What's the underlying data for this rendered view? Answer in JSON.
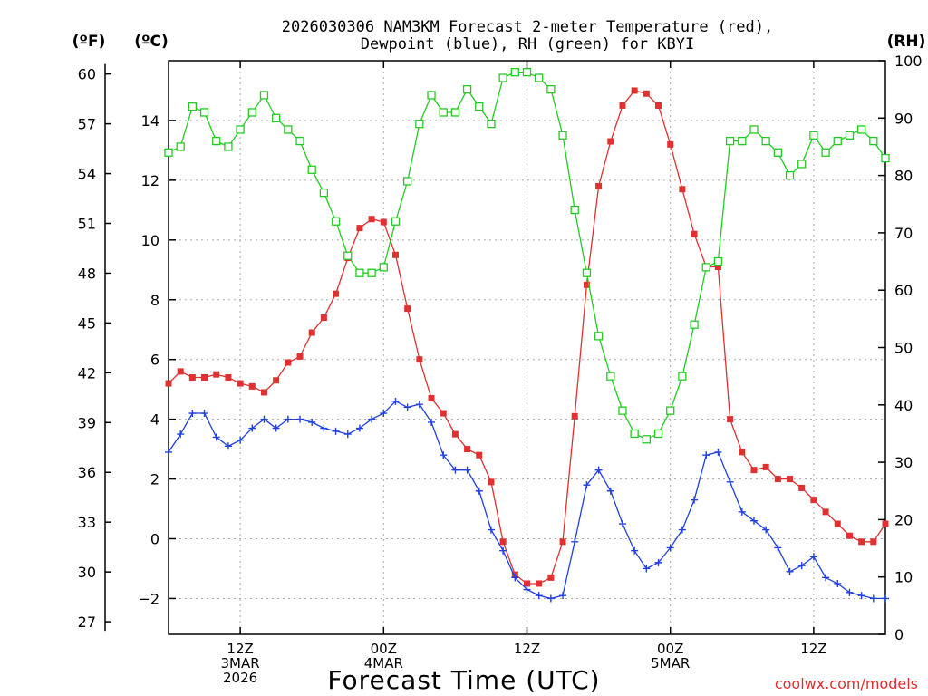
{
  "header": {
    "title_line1": "2026030306 NAM3KM Forecast 2-meter Temperature (red),",
    "title_line2": "Dewpoint (blue), RH (green) for KBYI"
  },
  "axes": {
    "left_f_unit": "(ºF)",
    "left_c_unit": "(ºC)",
    "right_unit": "(RH)",
    "xlabel": "Forecast Time (UTC)"
  },
  "footer": {
    "credit": "coolwx.com/models"
  },
  "colors": {
    "temperature": "#e03030",
    "dewpoint": "#2040e0",
    "rh": "#22cc22",
    "grid": "#aaaaaa"
  },
  "chart_data": {
    "type": "line",
    "title": "2026030306 NAM3KM Forecast 2-meter Temperature (red), Dewpoint (blue), RH (green) for KBYI",
    "xlabel": "Forecast Time (UTC)",
    "x_start_hour_utc": 6,
    "x_step_hours": 1,
    "x_range_hours": [
      6,
      66
    ],
    "x_ticks": [
      {
        "hour": 12,
        "lines": [
          "12Z",
          "3MAR",
          "2026"
        ]
      },
      {
        "hour": 24,
        "lines": [
          "00Z",
          "4MAR"
        ]
      },
      {
        "hour": 36,
        "lines": [
          "12Z"
        ]
      },
      {
        "hour": 48,
        "lines": [
          "00Z",
          "5MAR"
        ]
      },
      {
        "hour": 60,
        "lines": [
          "12Z"
        ]
      }
    ],
    "y_left_c_range": [
      -3.2,
      16
    ],
    "y_left_c_ticks": [
      -2,
      0,
      2,
      4,
      6,
      8,
      10,
      12,
      14
    ],
    "y_left_f_ticks": [
      27,
      30,
      33,
      36,
      39,
      42,
      45,
      48,
      51,
      54,
      57,
      60
    ],
    "y_right_rh_range": [
      0,
      100
    ],
    "y_right_rh_ticks": [
      0,
      10,
      20,
      30,
      40,
      50,
      60,
      70,
      80,
      90,
      100
    ],
    "grid": true,
    "series": [
      {
        "name": "Temperature",
        "axis": "celsius",
        "marker": "filled-square",
        "values": [
          5.2,
          5.6,
          5.4,
          5.4,
          5.5,
          5.4,
          5.2,
          5.1,
          4.9,
          5.3,
          5.9,
          6.1,
          6.9,
          7.4,
          8.2,
          9.4,
          10.4,
          10.7,
          10.6,
          9.5,
          7.7,
          6.0,
          4.7,
          4.2,
          3.5,
          3.0,
          2.8,
          1.9,
          -0.1,
          -1.2,
          -1.5,
          -1.5,
          -1.3,
          -0.1,
          4.1,
          8.5,
          11.8,
          13.3,
          14.5,
          15.0,
          14.9,
          14.5,
          13.2,
          11.7,
          10.2,
          9.1,
          9.1,
          4.0,
          2.9,
          2.3,
          2.4,
          2.0,
          2.0,
          1.7,
          1.3,
          0.9,
          0.5,
          0.1,
          -0.1,
          -0.1,
          0.5
        ]
      },
      {
        "name": "Dewpoint",
        "axis": "celsius",
        "marker": "plus",
        "values": [
          2.9,
          3.5,
          4.2,
          4.2,
          3.4,
          3.1,
          3.3,
          3.7,
          4.0,
          3.7,
          4.0,
          4.0,
          3.9,
          3.7,
          3.6,
          3.5,
          3.7,
          4.0,
          4.2,
          4.6,
          4.4,
          4.5,
          3.9,
          2.8,
          2.3,
          2.3,
          1.6,
          0.3,
          -0.4,
          -1.3,
          -1.7,
          -1.9,
          -2.0,
          -1.9,
          -0.1,
          1.8,
          2.3,
          1.6,
          0.5,
          -0.4,
          -1.0,
          -0.8,
          -0.3,
          0.3,
          1.3,
          2.8,
          2.9,
          1.9,
          0.9,
          0.6,
          0.3,
          -0.3,
          -1.1,
          -0.9,
          -0.6,
          -1.3,
          -1.5,
          -1.8,
          -1.9,
          -2.0,
          -2.0
        ]
      },
      {
        "name": "RH",
        "axis": "rh",
        "marker": "open-square",
        "values": [
          84,
          85,
          92,
          91,
          86,
          85,
          88,
          91,
          94,
          90,
          88,
          86,
          81,
          77,
          72,
          66,
          63,
          63,
          64,
          72,
          79,
          89,
          94,
          91,
          91,
          95,
          92,
          89,
          97,
          98,
          98,
          97,
          95,
          87,
          74,
          63,
          52,
          45,
          39,
          35,
          34,
          35,
          39,
          45,
          54,
          64,
          65,
          86,
          86,
          88,
          86,
          84,
          80,
          82,
          87,
          84,
          86,
          87,
          88,
          86,
          83
        ]
      }
    ]
  }
}
